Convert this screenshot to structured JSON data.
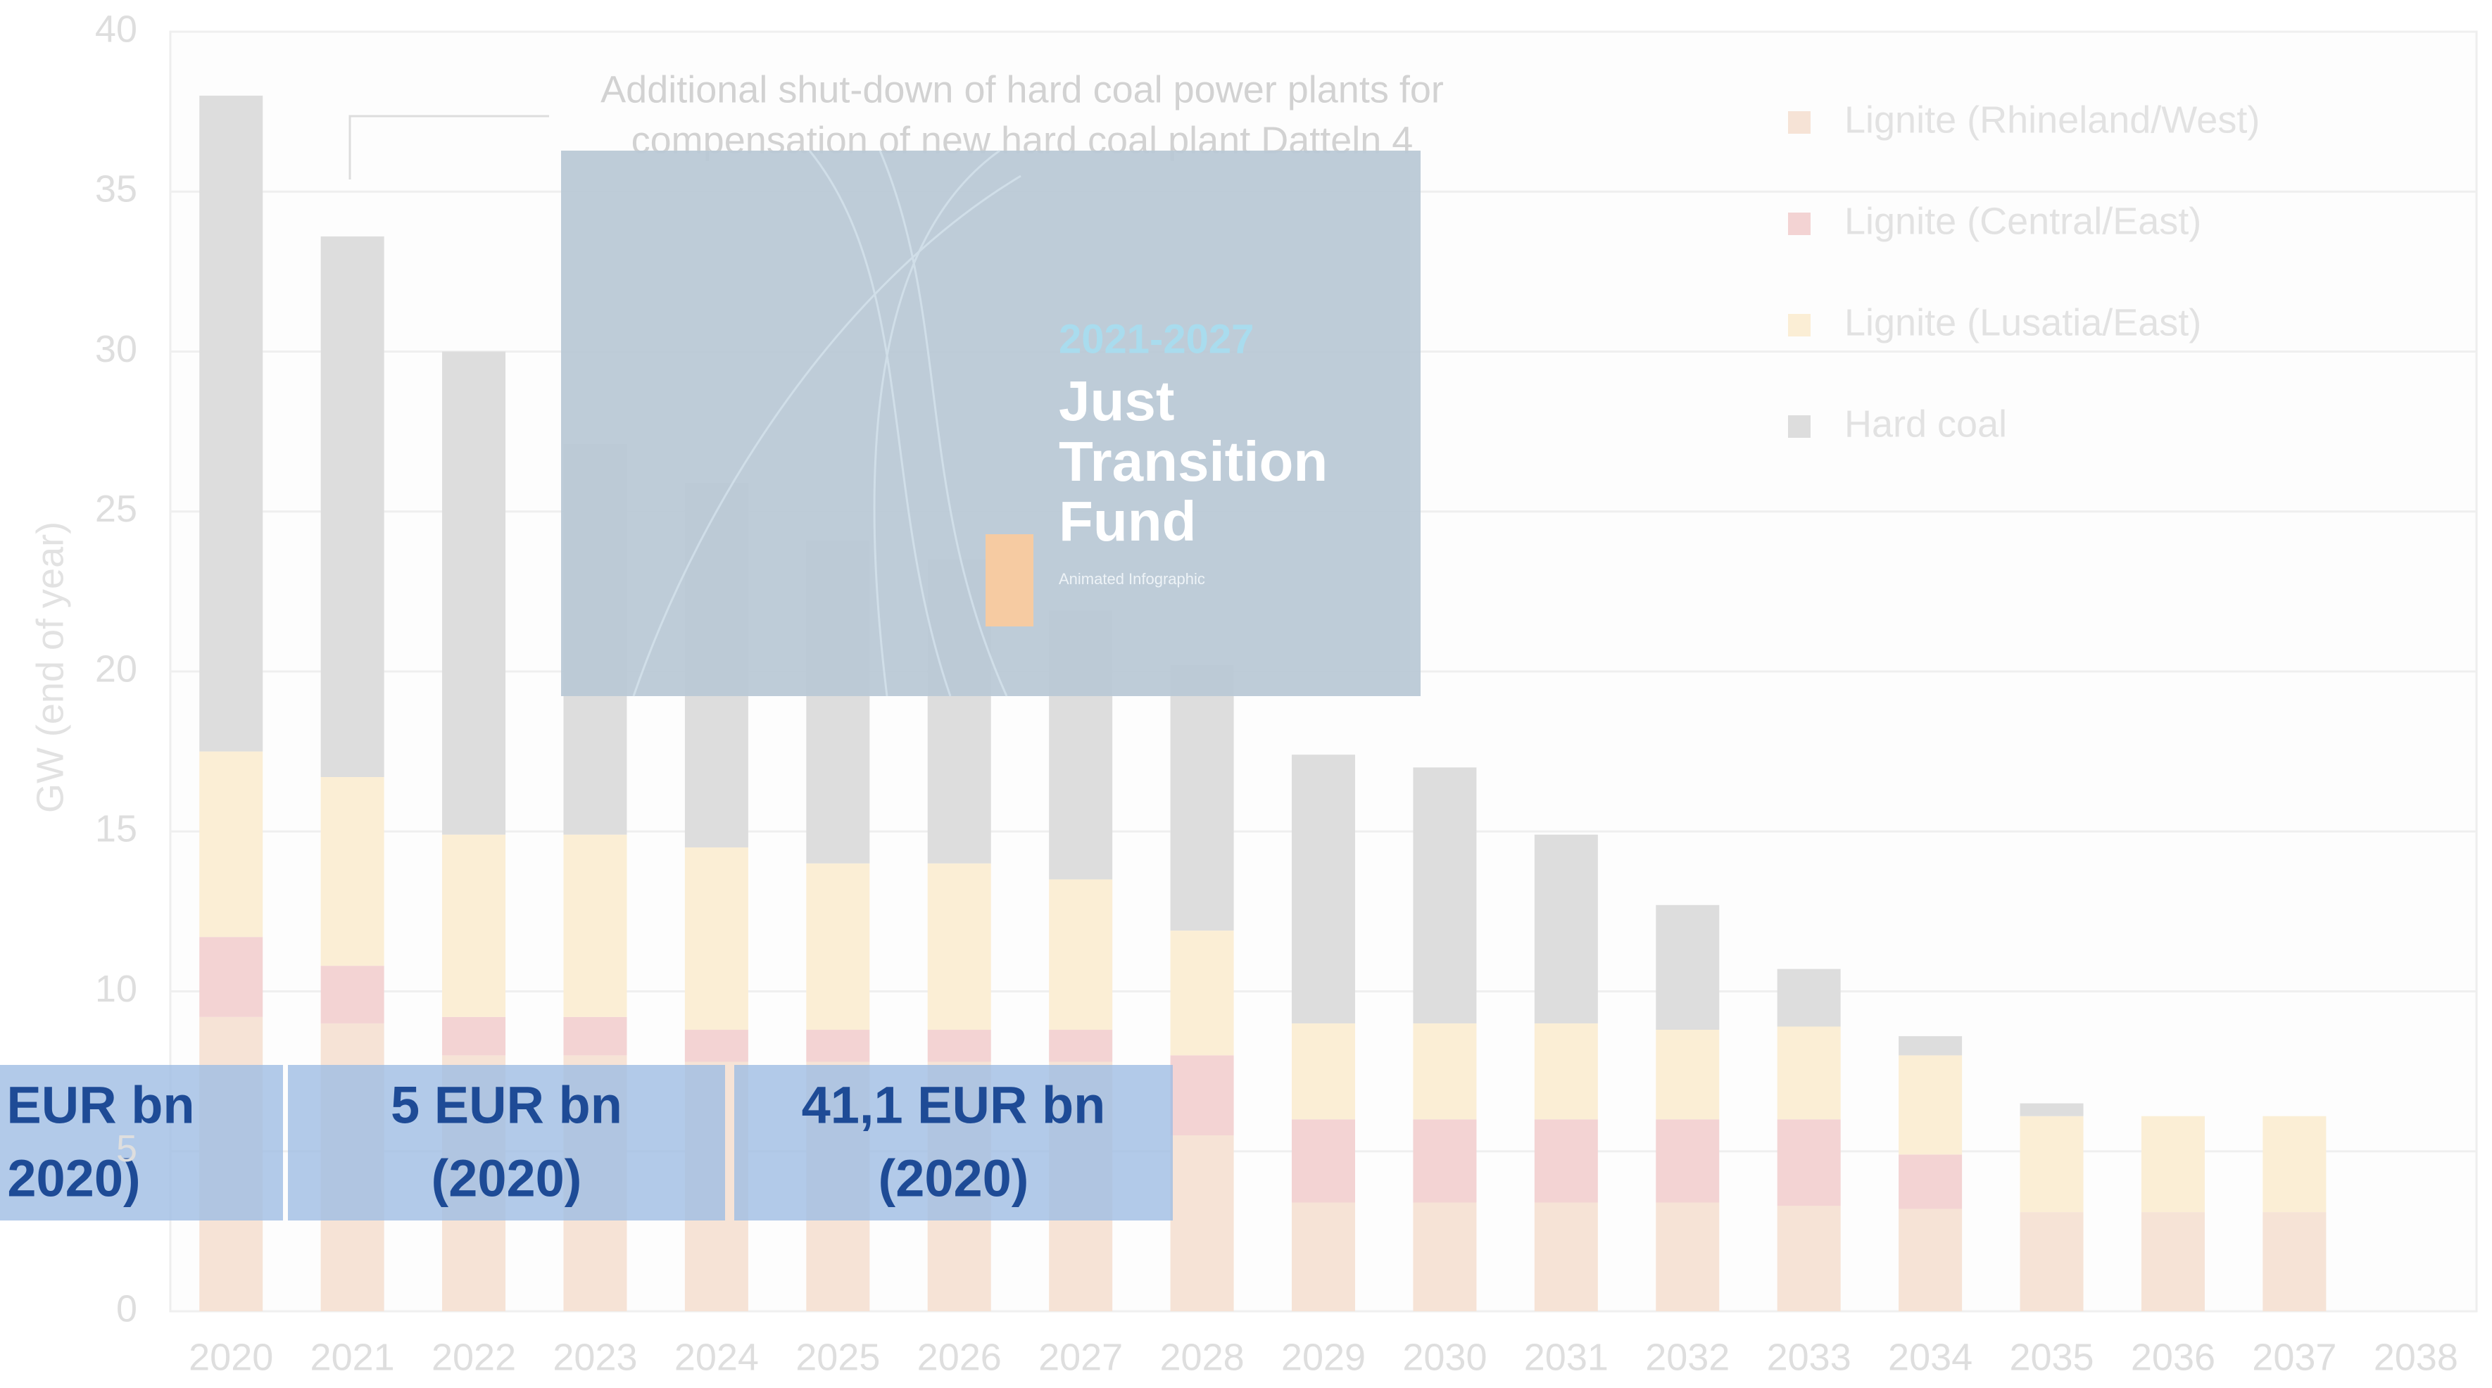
{
  "chart_data": {
    "type": "stacked_bar",
    "y_label": "GW (end of year)",
    "annotation": [
      "Additional shut-down of hard coal power plants for",
      "compensation of new hard coal plant Datteln 4"
    ],
    "categories": [
      "2020",
      "2021",
      "2022",
      "2023",
      "2024",
      "2025",
      "2026",
      "2027",
      "2028",
      "2029",
      "2030",
      "2031",
      "2032",
      "2033",
      "2034",
      "2035",
      "2036",
      "2037",
      "2038"
    ],
    "series": [
      {
        "name": "Lignite (Rhineland/West)",
        "color": "#f6e3d6",
        "values": [
          9.2,
          9.0,
          8.0,
          8.0,
          7.8,
          7.8,
          7.8,
          7.8,
          5.5,
          3.4,
          3.4,
          3.4,
          3.4,
          3.3,
          3.2,
          3.1,
          3.1,
          3.1,
          0
        ]
      },
      {
        "name": "Lignite (Central/East)",
        "color": "#f3d3d3",
        "values": [
          2.5,
          1.8,
          1.2,
          1.2,
          1.0,
          1.0,
          1.0,
          1.0,
          2.5,
          2.6,
          2.6,
          2.6,
          2.6,
          2.7,
          1.7,
          0,
          0,
          0,
          0
        ]
      },
      {
        "name": "Lignite (Lusatia/East)",
        "color": "#fbeed5",
        "values": [
          5.8,
          5.9,
          5.7,
          5.7,
          5.7,
          5.2,
          5.2,
          4.7,
          3.9,
          3.0,
          3.0,
          3.0,
          2.8,
          2.9,
          3.1,
          3.0,
          3.0,
          3.0,
          0
        ]
      },
      {
        "name": "Hard coal",
        "color": "#dddddd",
        "values": [
          20.5,
          16.9,
          15.1,
          12.2,
          11.4,
          10.1,
          9.5,
          8.4,
          8.3,
          8.4,
          8.0,
          5.9,
          3.9,
          1.8,
          0.6,
          0.4,
          0,
          0,
          0
        ]
      }
    ],
    "ylim": [
      0,
      40
    ],
    "yticks": [
      0,
      5,
      10,
      15,
      20,
      25,
      30,
      35,
      40
    ],
    "grid": true
  },
  "overlay": {
    "card": {
      "years": "2021-2027",
      "title": [
        "Just",
        "Transition",
        "Fund"
      ],
      "subtitle": "Animated Infographic"
    },
    "boxes": [
      [
        "EUR bn",
        "2020)"
      ],
      [
        "5 EUR bn",
        "(2020)"
      ],
      [
        "41,1 EUR bn",
        "(2020)"
      ]
    ]
  }
}
